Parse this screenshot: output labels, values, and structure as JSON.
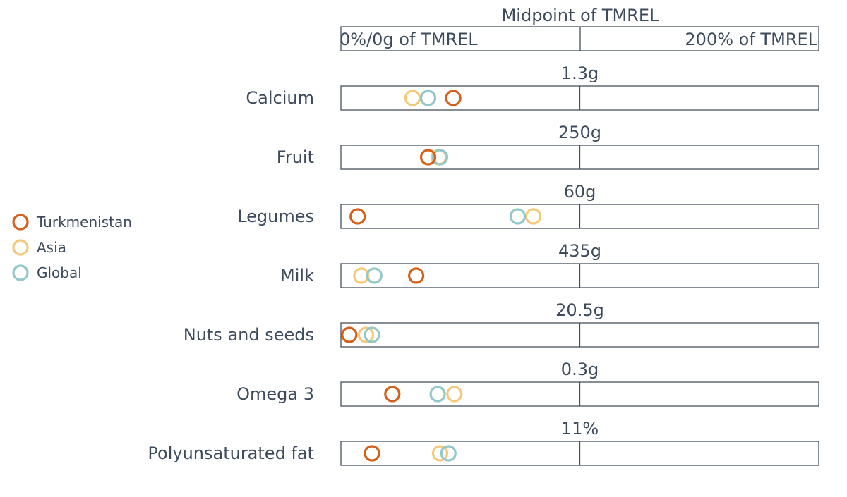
{
  "chart_data": {
    "type": "scatter",
    "header": {
      "title": "Midpoint of TMREL",
      "left_label": "0%/0g of TMREL",
      "right_label": "200% of TMREL"
    },
    "x_unit": "percent_of_TMREL",
    "xlim": [
      0,
      200
    ],
    "series": [
      {
        "name": "Turkmenistan",
        "color": "#d4601a"
      },
      {
        "name": "Asia",
        "color": "#f5c97a"
      },
      {
        "name": "Global",
        "color": "#93c8cb"
      }
    ],
    "rows": [
      {
        "label": "Calcium",
        "midpoint": "1.3g",
        "values": {
          "Turkmenistan": 47,
          "Asia": 30,
          "Global": 36.5
        }
      },
      {
        "label": "Fruit",
        "midpoint": "250g",
        "values": {
          "Turkmenistan": 36.5,
          "Asia": 41,
          "Global": 41.5
        }
      },
      {
        "label": "Legumes",
        "midpoint": "60g",
        "values": {
          "Turkmenistan": 7,
          "Asia": 80.5,
          "Global": 74
        }
      },
      {
        "label": "Milk",
        "midpoint": "435g",
        "values": {
          "Turkmenistan": 31.5,
          "Asia": 8.5,
          "Global": 14
        }
      },
      {
        "label": "Nuts and seeds",
        "midpoint": "20.5g",
        "values": {
          "Turkmenistan": 3.5,
          "Asia": 10.5,
          "Global": 13
        }
      },
      {
        "label": "Omega 3",
        "midpoint": "0.3g",
        "values": {
          "Turkmenistan": 21.5,
          "Asia": 47.5,
          "Global": 40.5
        }
      },
      {
        "label": "Polyunsaturated fat",
        "midpoint": "11%",
        "values": {
          "Turkmenistan": 13,
          "Asia": 41.5,
          "Global": 45
        }
      }
    ],
    "legend_position": "left"
  }
}
